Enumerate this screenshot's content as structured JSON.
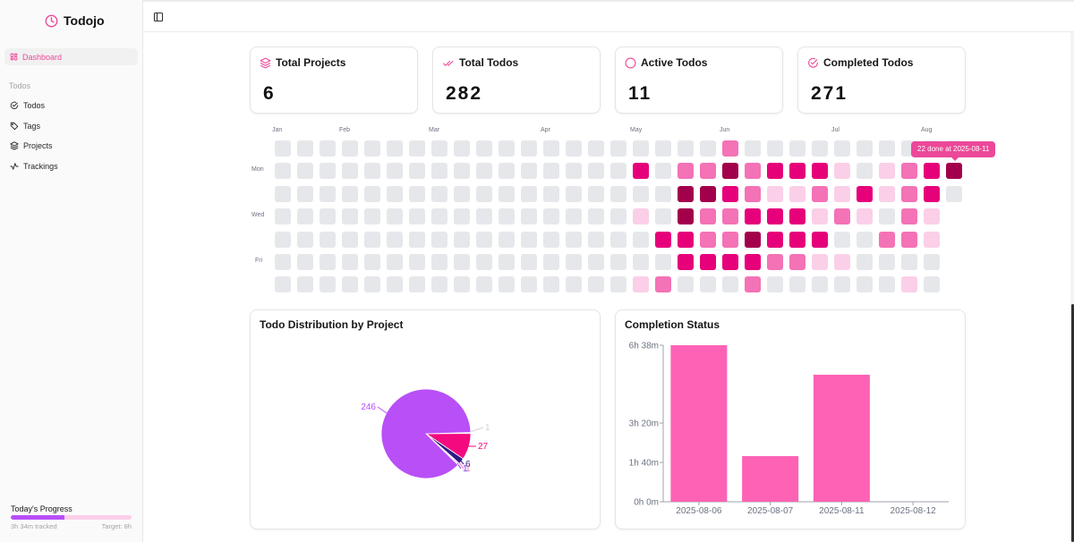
{
  "app": {
    "title": "Todojo"
  },
  "sidebar": {
    "active_item": {
      "label": "Dashboard",
      "icon": "dashboard-grid-icon"
    },
    "group_label": "Todos",
    "items": [
      {
        "label": "Todos",
        "icon": "check-circle-icon"
      },
      {
        "label": "Tags",
        "icon": "tag-icon"
      },
      {
        "label": "Projects",
        "icon": "layers-icon"
      },
      {
        "label": "Trackings",
        "icon": "activity-icon"
      }
    ],
    "progress": {
      "title": "Today's Progress",
      "tracked": "3h 34m tracked",
      "target": "Target: 8h",
      "fraction": 0.446
    }
  },
  "header": {
    "toggle_icon": "sidebar-toggle-icon"
  },
  "stats": [
    {
      "label": "Total Projects",
      "value": "6",
      "icon": "layers-icon"
    },
    {
      "label": "Total Todos",
      "value": "282",
      "icon": "double-check-icon"
    },
    {
      "label": "Active Todos",
      "value": "11",
      "icon": "circle-icon"
    },
    {
      "label": "Completed Todos",
      "value": "271",
      "icon": "check-circle-icon"
    }
  ],
  "colors": {
    "accent": "#ec4899",
    "level0": "#e5e7eb",
    "level1": "#fbcfe8",
    "level2": "#f472b6",
    "level3": "#e6007a",
    "level4": "#a3004c"
  },
  "heatmap": {
    "months": [
      {
        "label": "Jan",
        "col": 0
      },
      {
        "label": "Feb",
        "col": 3
      },
      {
        "label": "Mar",
        "col": 7
      },
      {
        "label": "Apr",
        "col": 12
      },
      {
        "label": "May",
        "col": 16
      },
      {
        "label": "Jun",
        "col": 20
      },
      {
        "label": "Jul",
        "col": 25
      },
      {
        "label": "Aug",
        "col": 29
      }
    ],
    "day_labels": [
      {
        "label": "Mon",
        "row": 1
      },
      {
        "label": "Wed",
        "row": 3
      },
      {
        "label": "Fri",
        "row": 5
      }
    ],
    "columns": 31,
    "last_column_rows": 3,
    "levels_by_row": [
      "0000000000000000000020000000000",
      "0000000000000000302242333101234",
      "0000000000000000004432112131230",
      "000000000000000010422333121021",
      "000000000000000003322433300221",
      "000000000000000000333322110000",
      "000000000000000012000200000010"
    ],
    "tooltip": "22 done at 2025-08-11"
  },
  "charts": {
    "pie_title": "Todo Distribution by Project",
    "bar_title": "Completion Status"
  },
  "chart_data": [
    {
      "type": "pie",
      "title": "Todo Distribution by Project",
      "slices": [
        {
          "value": 1,
          "label": "1",
          "color": "#d4d4d8"
        },
        {
          "value": 27,
          "label": "27",
          "color": "#f5097f"
        },
        {
          "value": 6,
          "label": "6",
          "color": "#2e1a87"
        },
        {
          "value": 1,
          "label": "1",
          "color": "#f472b6"
        },
        {
          "value": 1,
          "label": "1",
          "color": "#7c3aed"
        },
        {
          "value": 246,
          "label": "246",
          "color": "#b94ff7"
        }
      ]
    },
    {
      "type": "bar",
      "title": "Completion Status",
      "categories": [
        "2025-08-06",
        "2025-08-07",
        "2025-08-11",
        "2025-08-12"
      ],
      "values_minutes": [
        398,
        116,
        323,
        0
      ],
      "yticks": [
        {
          "value": 0,
          "label": "0h 0m"
        },
        {
          "value": 100,
          "label": "1h 40m"
        },
        {
          "value": 200,
          "label": "3h 20m"
        },
        {
          "value": 398,
          "label": "6h 38m"
        }
      ],
      "ylim": [
        0,
        398
      ],
      "color": "#fd62b5"
    }
  ]
}
